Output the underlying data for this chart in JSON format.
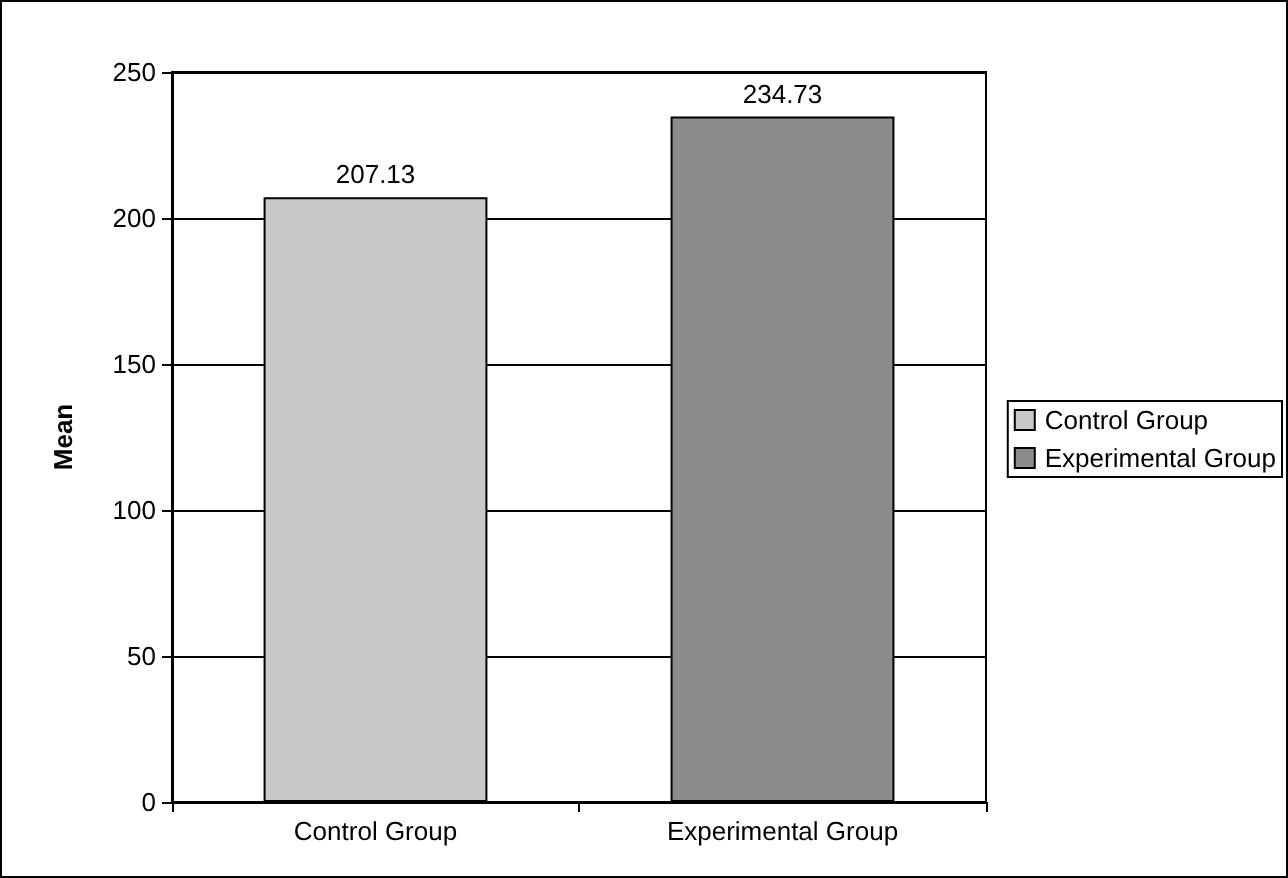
{
  "chart_data": {
    "type": "bar",
    "ylabel": "Mean",
    "categories": [
      "Control Group",
      "Experimental Group"
    ],
    "series": [
      {
        "name": "Control Group",
        "color": "#c8c8c8",
        "values": [
          207.13,
          null
        ]
      },
      {
        "name": "Experimental Group",
        "color": "#8c8c8c",
        "values": [
          null,
          234.73
        ]
      }
    ],
    "ylim": [
      0,
      250
    ],
    "yticks": [
      0,
      50,
      100,
      150,
      200,
      250
    ],
    "grid": "y",
    "legend": "right",
    "data_labels": true
  }
}
